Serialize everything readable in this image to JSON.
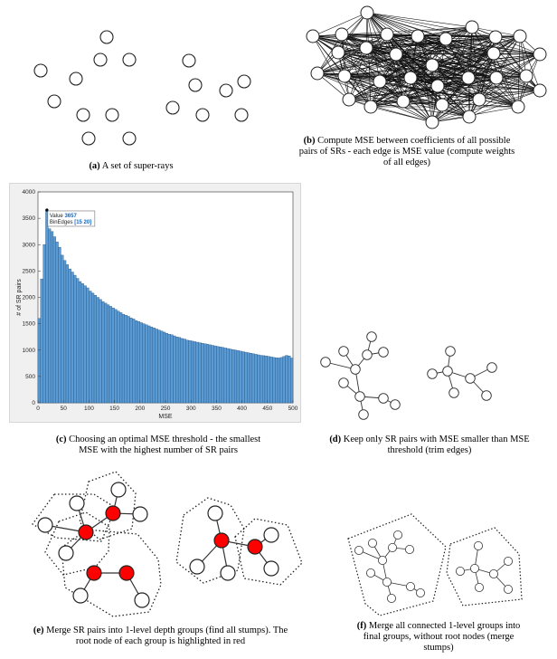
{
  "captions": {
    "a": {
      "letter": "(a)",
      "text": "A set of super-rays"
    },
    "b": {
      "letter": "(b)",
      "lines": [
        "Compute MSE between coefficients of all possible",
        "pairs of SRs - each edge is MSE value (compute weights",
        "of all edges)"
      ]
    },
    "c": {
      "letter": "(c)",
      "lines": [
        "Choosing an optimal MSE threshold - the smallest",
        "MSE with the highest number of SR pairs"
      ]
    },
    "d": {
      "letter": "(d)",
      "lines": [
        "Keep only SR pairs with MSE smaller than MSE",
        "threshold (trim edges)"
      ]
    },
    "e": {
      "letter": "(e)",
      "lines": [
        "Merge SR pairs into 1-level depth groups (find all stumps). The",
        "root node of each group is highlighted in red"
      ]
    },
    "f": {
      "letter": "(f)",
      "lines": [
        "Merge all connected 1-level groups into",
        "final groups, without root nodes (merge",
        "stumps)"
      ]
    }
  },
  "colors": {
    "bar": "#5b9bd5",
    "bar_edge": "#1f4e79",
    "root_node": "#ff0000",
    "datatip_value": "#1565c0"
  },
  "datatip": {
    "value_label": "Value",
    "value": "3657",
    "edges_label": "BinEdges",
    "edges": "[15 20]"
  },
  "chart_data": {
    "type": "bar",
    "title": "",
    "xlabel": "MSE",
    "ylabel": "# of SR pairs",
    "xlim": [
      0,
      500
    ],
    "ylim": [
      0,
      4000
    ],
    "bin_width": 5,
    "xticks": [
      0,
      50,
      100,
      150,
      200,
      250,
      300,
      350,
      400,
      450,
      500
    ],
    "yticks": [
      0,
      500,
      1000,
      1500,
      2000,
      2500,
      3000,
      3500,
      4000
    ],
    "values": [
      1600,
      2350,
      3000,
      3657,
      3300,
      3250,
      3150,
      3050,
      2950,
      2800,
      2700,
      2620,
      2540,
      2480,
      2420,
      2360,
      2300,
      2260,
      2220,
      2180,
      2120,
      2080,
      2040,
      2000,
      1960,
      1920,
      1890,
      1860,
      1830,
      1800,
      1770,
      1740,
      1710,
      1680,
      1660,
      1640,
      1610,
      1590,
      1560,
      1540,
      1520,
      1500,
      1480,
      1460,
      1440,
      1420,
      1400,
      1380,
      1360,
      1340,
      1320,
      1300,
      1290,
      1270,
      1250,
      1240,
      1220,
      1210,
      1190,
      1180,
      1170,
      1160,
      1150,
      1140,
      1130,
      1120,
      1110,
      1100,
      1090,
      1080,
      1070,
      1060,
      1050,
      1040,
      1030,
      1020,
      1010,
      1000,
      990,
      980,
      970,
      960,
      950,
      940,
      930,
      920,
      910,
      900,
      895,
      890,
      880,
      870,
      860,
      855,
      850,
      860,
      880,
      900,
      890,
      850
    ]
  }
}
